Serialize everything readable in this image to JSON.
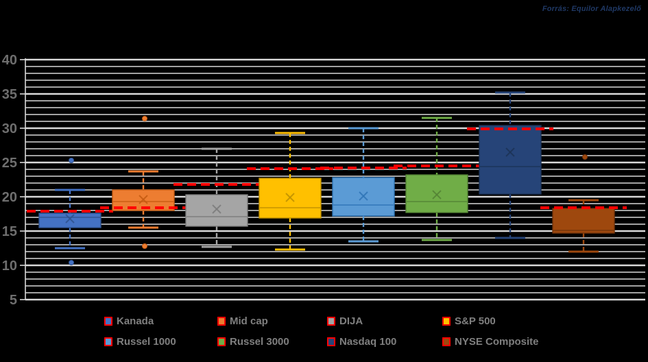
{
  "header": {
    "source_note": "Forrás: Equilor Alapkezelő"
  },
  "colors": {
    "background": "#000000",
    "gridline": "#d9d9d9",
    "axis_label_text": "#6e6e6e",
    "legend_text": "#7f7f7f",
    "red_dash_line": "#ff0000",
    "source_note_text": "#1f3864"
  },
  "chart_data": {
    "type": "boxplot",
    "title": "",
    "xlabel": "",
    "ylabel": "",
    "grid": true,
    "legend_position": "bottom",
    "y_axis": {
      "min": 5,
      "max": 40,
      "minor_step": 1,
      "major_step": 5,
      "tick_labels": [
        "40",
        "35",
        "30",
        "25",
        "20",
        "15",
        "10",
        "5"
      ]
    },
    "series": [
      {
        "name": "Kanada",
        "color": "#4472c4",
        "border_color": "#2f528f",
        "whisker_low": 12.5,
        "q1": 15.5,
        "median": 17.0,
        "q3": 17.6,
        "whisker_high": 21.0,
        "mean": 16.8,
        "red_line": 17.9,
        "outliers": [
          25.3,
          10.4
        ]
      },
      {
        "name": "Mid cap",
        "color": "#ed7d31",
        "border_color": "#c55a11",
        "whisker_low": 15.5,
        "q1": 18.0,
        "median": 19.3,
        "q3": 21.0,
        "whisker_high": 23.7,
        "mean": 19.6,
        "red_line": 18.4,
        "outliers": [
          31.4,
          12.8
        ]
      },
      {
        "name": "DIJA",
        "color": "#a5a5a5",
        "border_color": "#7b7b7b",
        "whisker_low": 12.7,
        "q1": 15.7,
        "median": 17.1,
        "q3": 20.3,
        "whisker_high": 27.0,
        "mean": 18.2,
        "red_line": 21.8,
        "outliers": []
      },
      {
        "name": "S&P 500",
        "color": "#ffc000",
        "border_color": "#bf9000",
        "whisker_low": 12.3,
        "q1": 16.9,
        "median": 18.4,
        "q3": 22.7,
        "whisker_high": 29.3,
        "mean": 19.9,
        "red_line": 24.1,
        "outliers": []
      },
      {
        "name": "Russel 1000",
        "color": "#5b9bd5",
        "border_color": "#2e75b6",
        "whisker_low": 13.5,
        "q1": 17.2,
        "median": 18.8,
        "q3": 22.8,
        "whisker_high": 30.0,
        "mean": 20.1,
        "red_line": 24.2,
        "outliers": []
      },
      {
        "name": "Russel 3000",
        "color": "#70ad47",
        "border_color": "#548235",
        "whisker_low": 13.7,
        "q1": 17.7,
        "median": 19.3,
        "q3": 23.2,
        "whisker_high": 31.5,
        "mean": 20.3,
        "red_line": 24.5,
        "outliers": []
      },
      {
        "name": "Nasdaq 100",
        "color": "#264478",
        "border_color": "#1c3357",
        "whisker_low": 14.0,
        "q1": 20.4,
        "median": 24.4,
        "q3": 30.4,
        "whisker_high": 35.2,
        "mean": 26.5,
        "red_line": 29.9,
        "outliers": []
      },
      {
        "name": "NYSE Composite",
        "color": "#9e480e",
        "border_color": "#72330a",
        "whisker_low": 12.0,
        "q1": 14.7,
        "median": 15.1,
        "q3": 18.3,
        "whisker_high": 19.5,
        "mean": null,
        "red_line": 18.4,
        "outliers": [
          25.8
        ]
      }
    ],
    "legend_rows": [
      [
        "Kanada",
        "Mid cap",
        "DIJA",
        "S&P 500"
      ],
      [
        "Russel 1000",
        "Russel 3000",
        "Nasdaq 100",
        "NYSE Composite"
      ]
    ]
  }
}
